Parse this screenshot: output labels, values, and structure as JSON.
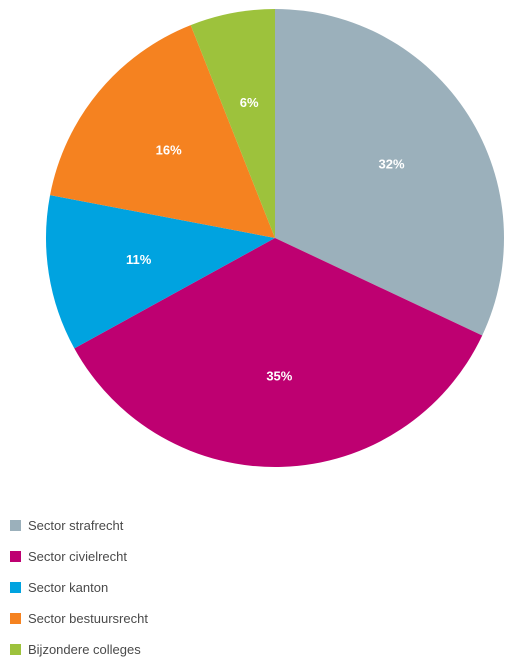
{
  "chart_data": {
    "type": "pie",
    "slices": [
      {
        "label": "Sector strafrecht",
        "value": 32,
        "display": "32%",
        "color": "#9bb0bb"
      },
      {
        "label": "Sector civielrecht",
        "value": 35,
        "display": "35%",
        "color": "#be0071"
      },
      {
        "label": "Sector kanton",
        "value": 11,
        "display": "11%",
        "color": "#00a3e0"
      },
      {
        "label": "Sector bestuursrecht",
        "value": 16,
        "display": "16%",
        "color": "#f58220"
      },
      {
        "label": "Bijzondere colleges",
        "value": 6,
        "display": "6%",
        "color": "#9dc23c"
      }
    ],
    "start_angle_deg": 0,
    "direction": "clockwise",
    "legend_position": "bottom-left"
  }
}
